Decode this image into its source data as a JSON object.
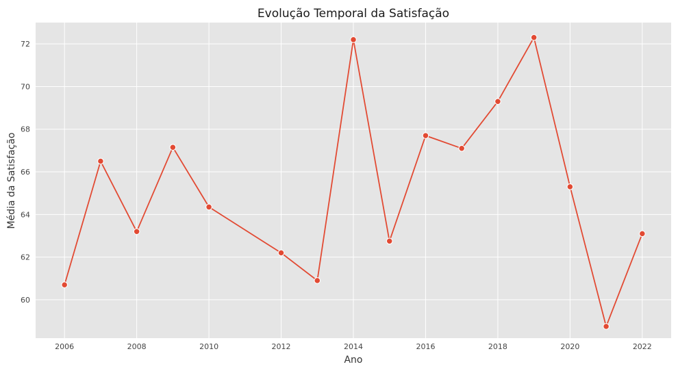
{
  "chart_data": {
    "type": "line",
    "title": "Evolução Temporal da Satisfação",
    "xlabel": "Ano",
    "ylabel": "Média da Satisfação",
    "xlim": [
      2005.2,
      2022.8
    ],
    "ylim": [
      58.2,
      73.0
    ],
    "x_ticks": [
      2006,
      2008,
      2010,
      2012,
      2014,
      2016,
      2018,
      2020,
      2022
    ],
    "y_ticks": [
      60,
      62,
      64,
      66,
      68,
      70,
      72
    ],
    "grid": true,
    "series": [
      {
        "x": [
          2006,
          2007,
          2008,
          2009,
          2010,
          2012,
          2013,
          2014,
          2015,
          2016,
          2017,
          2018,
          2019,
          2020,
          2021,
          2022
        ],
        "y": [
          60.7,
          66.5,
          63.2,
          67.15,
          64.35,
          62.2,
          60.9,
          72.2,
          62.75,
          67.7,
          67.1,
          69.3,
          72.3,
          65.3,
          58.75,
          63.1
        ]
      }
    ],
    "colors": {
      "line": "#e24a33",
      "plot_background": "#e5e5e5",
      "grid": "#ffffff"
    }
  }
}
